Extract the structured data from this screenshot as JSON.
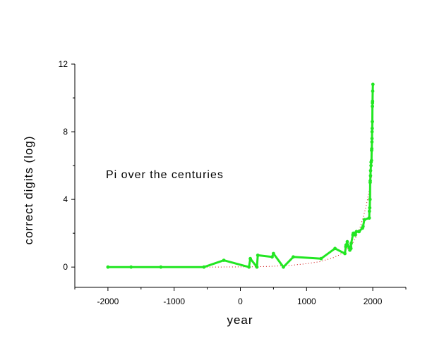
{
  "chart_data": {
    "type": "line",
    "title": "",
    "annotation": "Pi over the centuries",
    "xlabel": "year",
    "ylabel": "correct digits (log)",
    "xlim": [
      -2500,
      2500
    ],
    "ylim": [
      -1.2,
      12
    ],
    "x_ticks": [
      -2000,
      -1000,
      0,
      1000,
      2000
    ],
    "y_ticks": [
      0,
      4,
      8,
      12
    ],
    "grid": false,
    "legend": "none",
    "colors": {
      "data": "#22e622",
      "fit": "#cc0000",
      "axis": "#000000"
    },
    "series": [
      {
        "style": "line-markers",
        "x": [
          -2000,
          -1650,
          -1200,
          -550,
          -250,
          130,
          150,
          250,
          263,
          480,
          500,
          650,
          800,
          1220,
          1430,
          1579,
          1593,
          1596,
          1615,
          1621,
          1654,
          1665,
          1671,
          1674,
          1699,
          1706,
          1719,
          1737,
          1754,
          1789,
          1794,
          1841,
          1844,
          1853,
          1873,
          1945,
          1947,
          1949,
          1954,
          1957,
          1958,
          1961,
          1962,
          1966,
          1967,
          1973,
          1974,
          1981,
          1983,
          1985,
          1987,
          1988,
          1989,
          1991,
          1994,
          1995,
          1996,
          1997,
          1999,
          2002
        ],
        "y": [
          0.0,
          0.0,
          0.0,
          0.0,
          0.4,
          0.0,
          0.5,
          0.0,
          0.7,
          0.6,
          0.8,
          0.0,
          0.6,
          0.5,
          1.1,
          0.8,
          1.2,
          1.3,
          1.5,
          1.3,
          1.0,
          1.2,
          1.1,
          1.4,
          1.9,
          2.0,
          2.0,
          1.9,
          2.1,
          2.1,
          2.1,
          2.3,
          2.3,
          2.4,
          2.8,
          2.9,
          2.9,
          3.3,
          3.5,
          4.0,
          4.0,
          5.0,
          5.1,
          5.4,
          5.7,
          6.0,
          6.2,
          6.3,
          6.9,
          7.0,
          7.4,
          7.6,
          8.0,
          8.2,
          8.6,
          9.5,
          9.7,
          9.8,
          10.4,
          10.8
        ]
      },
      {
        "style": "dotted-fit",
        "x": [
          -2000,
          -1500,
          -1000,
          -500,
          0,
          250,
          500,
          750,
          1000,
          1200,
          1400,
          1500,
          1600,
          1700,
          1750,
          1800,
          1850,
          1900,
          1950,
          1980
        ],
        "y": [
          0.0,
          0.0,
          0.0,
          0.0,
          0.01,
          0.02,
          0.05,
          0.1,
          0.2,
          0.32,
          0.55,
          0.73,
          1.0,
          1.45,
          1.8,
          2.25,
          2.85,
          3.6,
          4.6,
          5.3
        ]
      }
    ]
  }
}
